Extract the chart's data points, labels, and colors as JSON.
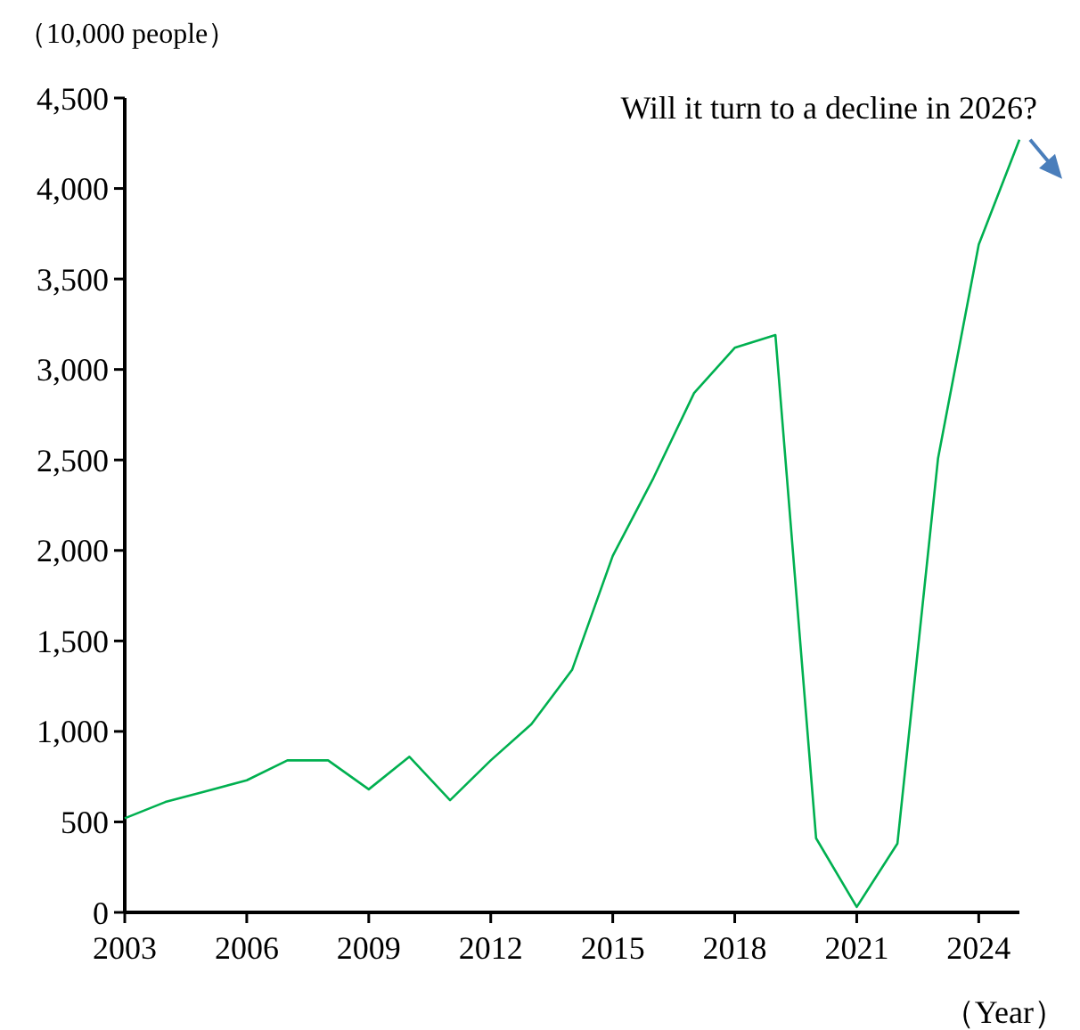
{
  "chart_data": {
    "type": "line",
    "ylabel": "（10,000 people）",
    "xlabel": "（Year）",
    "x": [
      2003,
      2004,
      2005,
      2006,
      2007,
      2008,
      2009,
      2010,
      2011,
      2012,
      2013,
      2014,
      2015,
      2016,
      2017,
      2018,
      2019,
      2020,
      2021,
      2022,
      2023,
      2024,
      2025
    ],
    "series": [
      {
        "color": "#00b050",
        "values": [
          520,
          610,
          670,
          730,
          840,
          840,
          680,
          860,
          620,
          840,
          1040,
          1340,
          1970,
          2400,
          2870,
          3120,
          3190,
          410,
          30,
          380,
          2510,
          3690,
          4270
        ]
      }
    ],
    "xlim": [
      2003,
      2025
    ],
    "xticks": [
      2003,
      2006,
      2009,
      2012,
      2015,
      2018,
      2021,
      2024
    ],
    "ylim": [
      0,
      4500
    ],
    "yticks": [
      {
        "value": 0,
        "label": "0"
      },
      {
        "value": 500,
        "label": "500"
      },
      {
        "value": 1000,
        "label": "1,000"
      },
      {
        "value": 1500,
        "label": "1,500"
      },
      {
        "value": 2000,
        "label": "2,000"
      },
      {
        "value": 2500,
        "label": "2,500"
      },
      {
        "value": 3000,
        "label": "3,000"
      },
      {
        "value": 3500,
        "label": "3,500"
      },
      {
        "value": 4000,
        "label": "4,000"
      },
      {
        "value": 4500,
        "label": "4,500"
      }
    ],
    "annotations": [
      {
        "text": "Will it turn to a decline in 2026?",
        "x": 2025,
        "y": 4270
      }
    ],
    "marker": "none",
    "line_style": "solid"
  }
}
